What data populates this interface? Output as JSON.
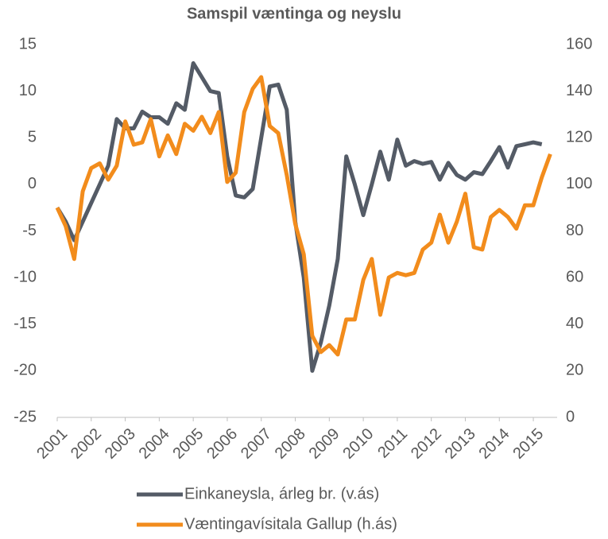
{
  "chart_data": {
    "type": "line",
    "title": "Samspil væntinga og neyslu",
    "x": [
      2001,
      2001.25,
      2001.5,
      2001.75,
      2002,
      2002.25,
      2002.5,
      2002.75,
      2003,
      2003.25,
      2003.5,
      2003.75,
      2004,
      2004.25,
      2004.5,
      2004.75,
      2005,
      2005.25,
      2005.5,
      2005.75,
      2006,
      2006.25,
      2006.5,
      2006.75,
      2007,
      2007.25,
      2007.5,
      2007.75,
      2008,
      2008.25,
      2008.5,
      2008.75,
      2009,
      2009.25,
      2009.5,
      2009.75,
      2010,
      2010.25,
      2010.5,
      2010.75,
      2011,
      2011.25,
      2011.5,
      2011.75,
      2012,
      2012.25,
      2012.5,
      2012.75,
      2013,
      2013.25,
      2013.5,
      2013.75,
      2014,
      2014.25,
      2014.5,
      2014.75,
      2015,
      2015.25,
      2015.5
    ],
    "xlim": [
      2001,
      2015.7
    ],
    "xticks": [
      2001,
      2002,
      2003,
      2004,
      2005,
      2006,
      2007,
      2008,
      2009,
      2010,
      2011,
      2012,
      2013,
      2014,
      2015
    ],
    "ylim": [
      -25,
      15
    ],
    "yticks": [
      -25,
      -20,
      -15,
      -10,
      -5,
      0,
      5,
      10,
      15
    ],
    "y2lim": [
      0,
      160
    ],
    "y2ticks": [
      0,
      20,
      40,
      60,
      80,
      100,
      120,
      140,
      160
    ],
    "series": [
      {
        "name": "Einkaneysla, árleg br. (v.ás)",
        "color": "#545b66",
        "values": [
          -2.5,
          -4,
          -6,
          -4,
          -2,
          0,
          2,
          7,
          6,
          6,
          7.8,
          7.2,
          7.2,
          6.5,
          8.7,
          8,
          13,
          11.5,
          10,
          9.8,
          3,
          -1.2,
          -1.4,
          -0.5,
          5,
          10.5,
          10.7,
          8,
          -4,
          -10,
          -20,
          -17,
          -13,
          -8,
          3,
          0,
          -3.3,
          0,
          3.5,
          0.5,
          4.8,
          2,
          2.5,
          2.2,
          2.4,
          0.5,
          2.3,
          1,
          0.5,
          1.3,
          1.1,
          2.5,
          4,
          1.8,
          4.1,
          4.3,
          4.5,
          4.3,
          null
        ]
      },
      {
        "name": "Væntingavísitala Gallup (h.ás)",
        "color": "#f28c1c",
        "axis": "y2",
        "values": [
          90,
          82,
          68,
          97,
          107,
          109,
          102,
          108,
          127,
          117,
          118,
          128,
          112,
          121,
          113,
          126,
          123,
          129,
          122,
          131,
          101,
          105,
          131,
          141,
          146,
          125,
          122,
          104,
          83,
          70,
          35,
          28,
          31,
          27,
          42,
          42,
          59,
          68,
          44,
          60,
          62,
          61,
          62,
          72,
          75,
          87,
          75,
          84,
          96,
          73,
          72,
          86,
          89,
          86,
          81,
          91,
          91,
          103,
          113
        ]
      }
    ]
  }
}
